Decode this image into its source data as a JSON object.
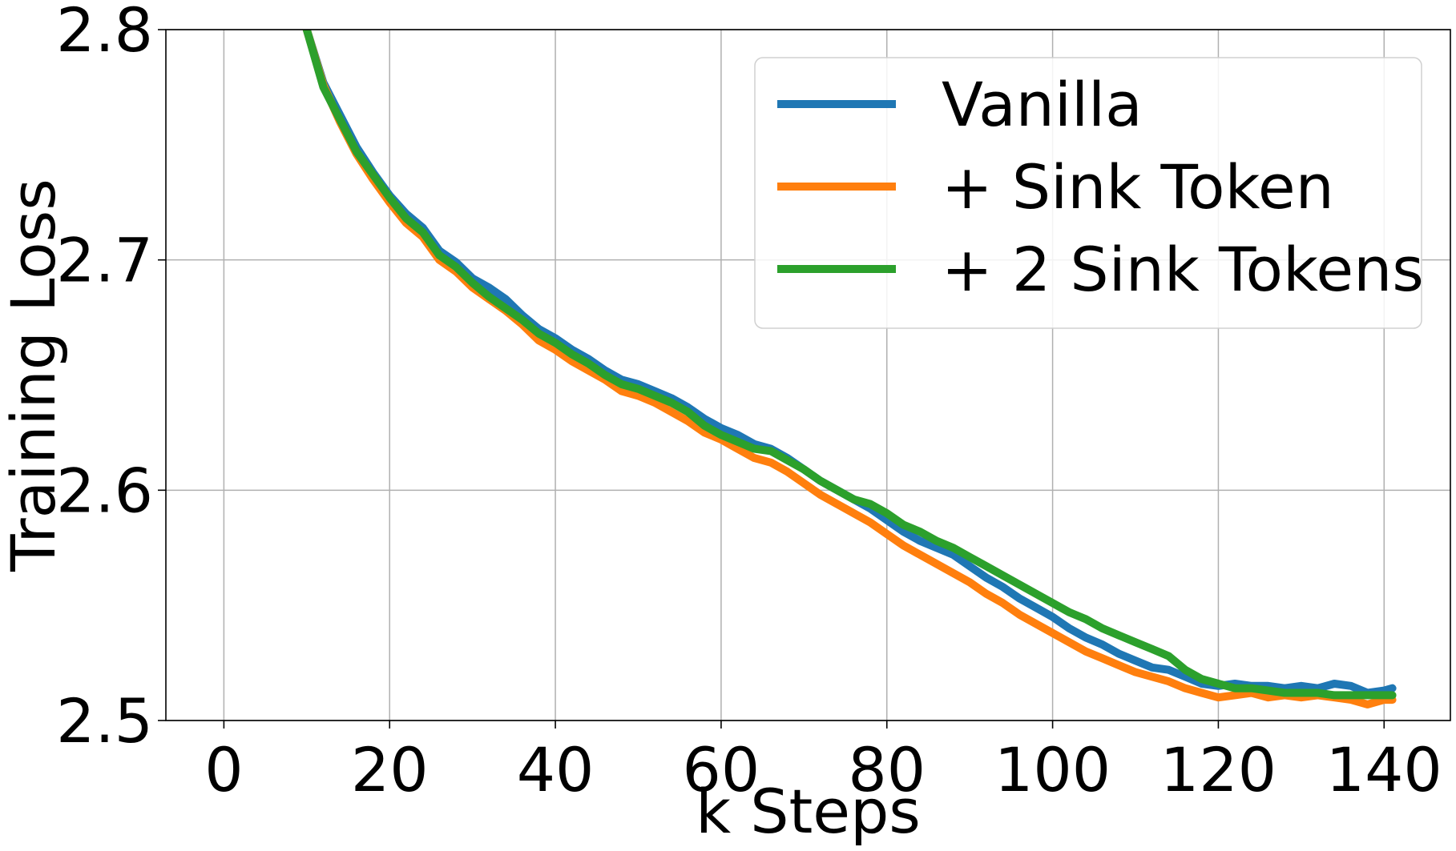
{
  "chart_data": {
    "type": "line",
    "title": "",
    "xlabel": "k Steps",
    "ylabel": "Training Loss",
    "xlim": [
      -7,
      148
    ],
    "ylim": [
      2.5,
      2.8
    ],
    "xticks": [
      0,
      20,
      40,
      60,
      80,
      100,
      120,
      140
    ],
    "xtick_labels": [
      "0",
      "20",
      "40",
      "60",
      "80",
      "100",
      "120",
      "140"
    ],
    "yticks": [
      2.5,
      2.6,
      2.7,
      2.8
    ],
    "ytick_labels": [
      "2.5",
      "2.6",
      "2.7",
      "2.8"
    ],
    "grid": true,
    "legend_position": "top-right",
    "series": [
      {
        "name": "Vanilla",
        "color": "#1f77b4",
        "x": [
          10,
          12,
          14,
          16,
          18,
          20,
          22,
          24,
          26,
          28,
          30,
          32,
          34,
          36,
          38,
          40,
          42,
          44,
          46,
          48,
          50,
          52,
          54,
          56,
          58,
          60,
          62,
          64,
          66,
          68,
          70,
          72,
          74,
          76,
          78,
          80,
          82,
          84,
          86,
          88,
          90,
          92,
          94,
          96,
          98,
          100,
          102,
          104,
          106,
          108,
          110,
          112,
          114,
          116,
          118,
          120,
          122,
          124,
          126,
          128,
          130,
          132,
          134,
          136,
          138,
          140,
          141
        ],
        "y": [
          2.8,
          2.777,
          2.763,
          2.749,
          2.738,
          2.728,
          2.72,
          2.714,
          2.704,
          2.699,
          2.692,
          2.688,
          2.683,
          2.676,
          2.67,
          2.666,
          2.661,
          2.657,
          2.652,
          2.648,
          2.646,
          2.643,
          2.64,
          2.636,
          2.631,
          2.627,
          2.624,
          2.62,
          2.618,
          2.614,
          2.609,
          2.604,
          2.6,
          2.596,
          2.592,
          2.587,
          2.582,
          2.578,
          2.575,
          2.572,
          2.567,
          2.562,
          2.558,
          2.553,
          2.549,
          2.545,
          2.54,
          2.536,
          2.533,
          2.529,
          2.526,
          2.523,
          2.522,
          2.519,
          2.516,
          2.515,
          2.516,
          2.515,
          2.515,
          2.514,
          2.515,
          2.514,
          2.516,
          2.515,
          2.512,
          2.513,
          2.514
        ]
      },
      {
        "name": "+ Sink Token",
        "color": "#ff7f0e",
        "x": [
          10,
          12,
          14,
          16,
          18,
          20,
          22,
          24,
          26,
          28,
          30,
          32,
          34,
          36,
          38,
          40,
          42,
          44,
          46,
          48,
          50,
          52,
          54,
          56,
          58,
          60,
          62,
          64,
          66,
          68,
          70,
          72,
          74,
          76,
          78,
          80,
          82,
          84,
          86,
          88,
          90,
          92,
          94,
          96,
          98,
          100,
          102,
          104,
          106,
          108,
          110,
          112,
          114,
          116,
          118,
          120,
          122,
          124,
          126,
          128,
          130,
          132,
          134,
          136,
          138,
          140,
          141
        ],
        "y": [
          2.8,
          2.776,
          2.76,
          2.746,
          2.735,
          2.725,
          2.716,
          2.71,
          2.7,
          2.695,
          2.688,
          2.683,
          2.678,
          2.672,
          2.665,
          2.661,
          2.656,
          2.652,
          2.648,
          2.643,
          2.641,
          2.638,
          2.634,
          2.63,
          2.625,
          2.622,
          2.618,
          2.614,
          2.612,
          2.608,
          2.603,
          2.598,
          2.594,
          2.59,
          2.586,
          2.581,
          2.576,
          2.572,
          2.568,
          2.564,
          2.56,
          2.555,
          2.551,
          2.546,
          2.542,
          2.538,
          2.534,
          2.53,
          2.527,
          2.524,
          2.521,
          2.519,
          2.517,
          2.514,
          2.512,
          2.51,
          2.511,
          2.512,
          2.51,
          2.511,
          2.51,
          2.511,
          2.51,
          2.509,
          2.507,
          2.509,
          2.509
        ]
      },
      {
        "name": "+ 2 Sink Tokens",
        "color": "#2ca02c",
        "x": [
          10,
          12,
          14,
          16,
          18,
          20,
          22,
          24,
          26,
          28,
          30,
          32,
          34,
          36,
          38,
          40,
          42,
          44,
          46,
          48,
          50,
          52,
          54,
          56,
          58,
          60,
          62,
          64,
          66,
          68,
          70,
          72,
          74,
          76,
          78,
          80,
          82,
          84,
          86,
          88,
          90,
          92,
          94,
          96,
          98,
          100,
          102,
          104,
          106,
          108,
          110,
          112,
          114,
          116,
          118,
          120,
          122,
          124,
          126,
          128,
          130,
          132,
          134,
          136,
          138,
          140,
          141
        ],
        "y": [
          2.8,
          2.775,
          2.761,
          2.747,
          2.737,
          2.727,
          2.718,
          2.712,
          2.702,
          2.697,
          2.69,
          2.684,
          2.679,
          2.674,
          2.668,
          2.664,
          2.659,
          2.655,
          2.65,
          2.646,
          2.644,
          2.641,
          2.638,
          2.634,
          2.628,
          2.624,
          2.621,
          2.618,
          2.617,
          2.613,
          2.609,
          2.604,
          2.6,
          2.596,
          2.594,
          2.59,
          2.585,
          2.582,
          2.578,
          2.575,
          2.571,
          2.567,
          2.563,
          2.559,
          2.555,
          2.551,
          2.547,
          2.544,
          2.54,
          2.537,
          2.534,
          2.531,
          2.528,
          2.522,
          2.518,
          2.516,
          2.514,
          2.514,
          2.513,
          2.512,
          2.512,
          2.512,
          2.511,
          2.511,
          2.511,
          2.511,
          2.511
        ]
      }
    ]
  }
}
